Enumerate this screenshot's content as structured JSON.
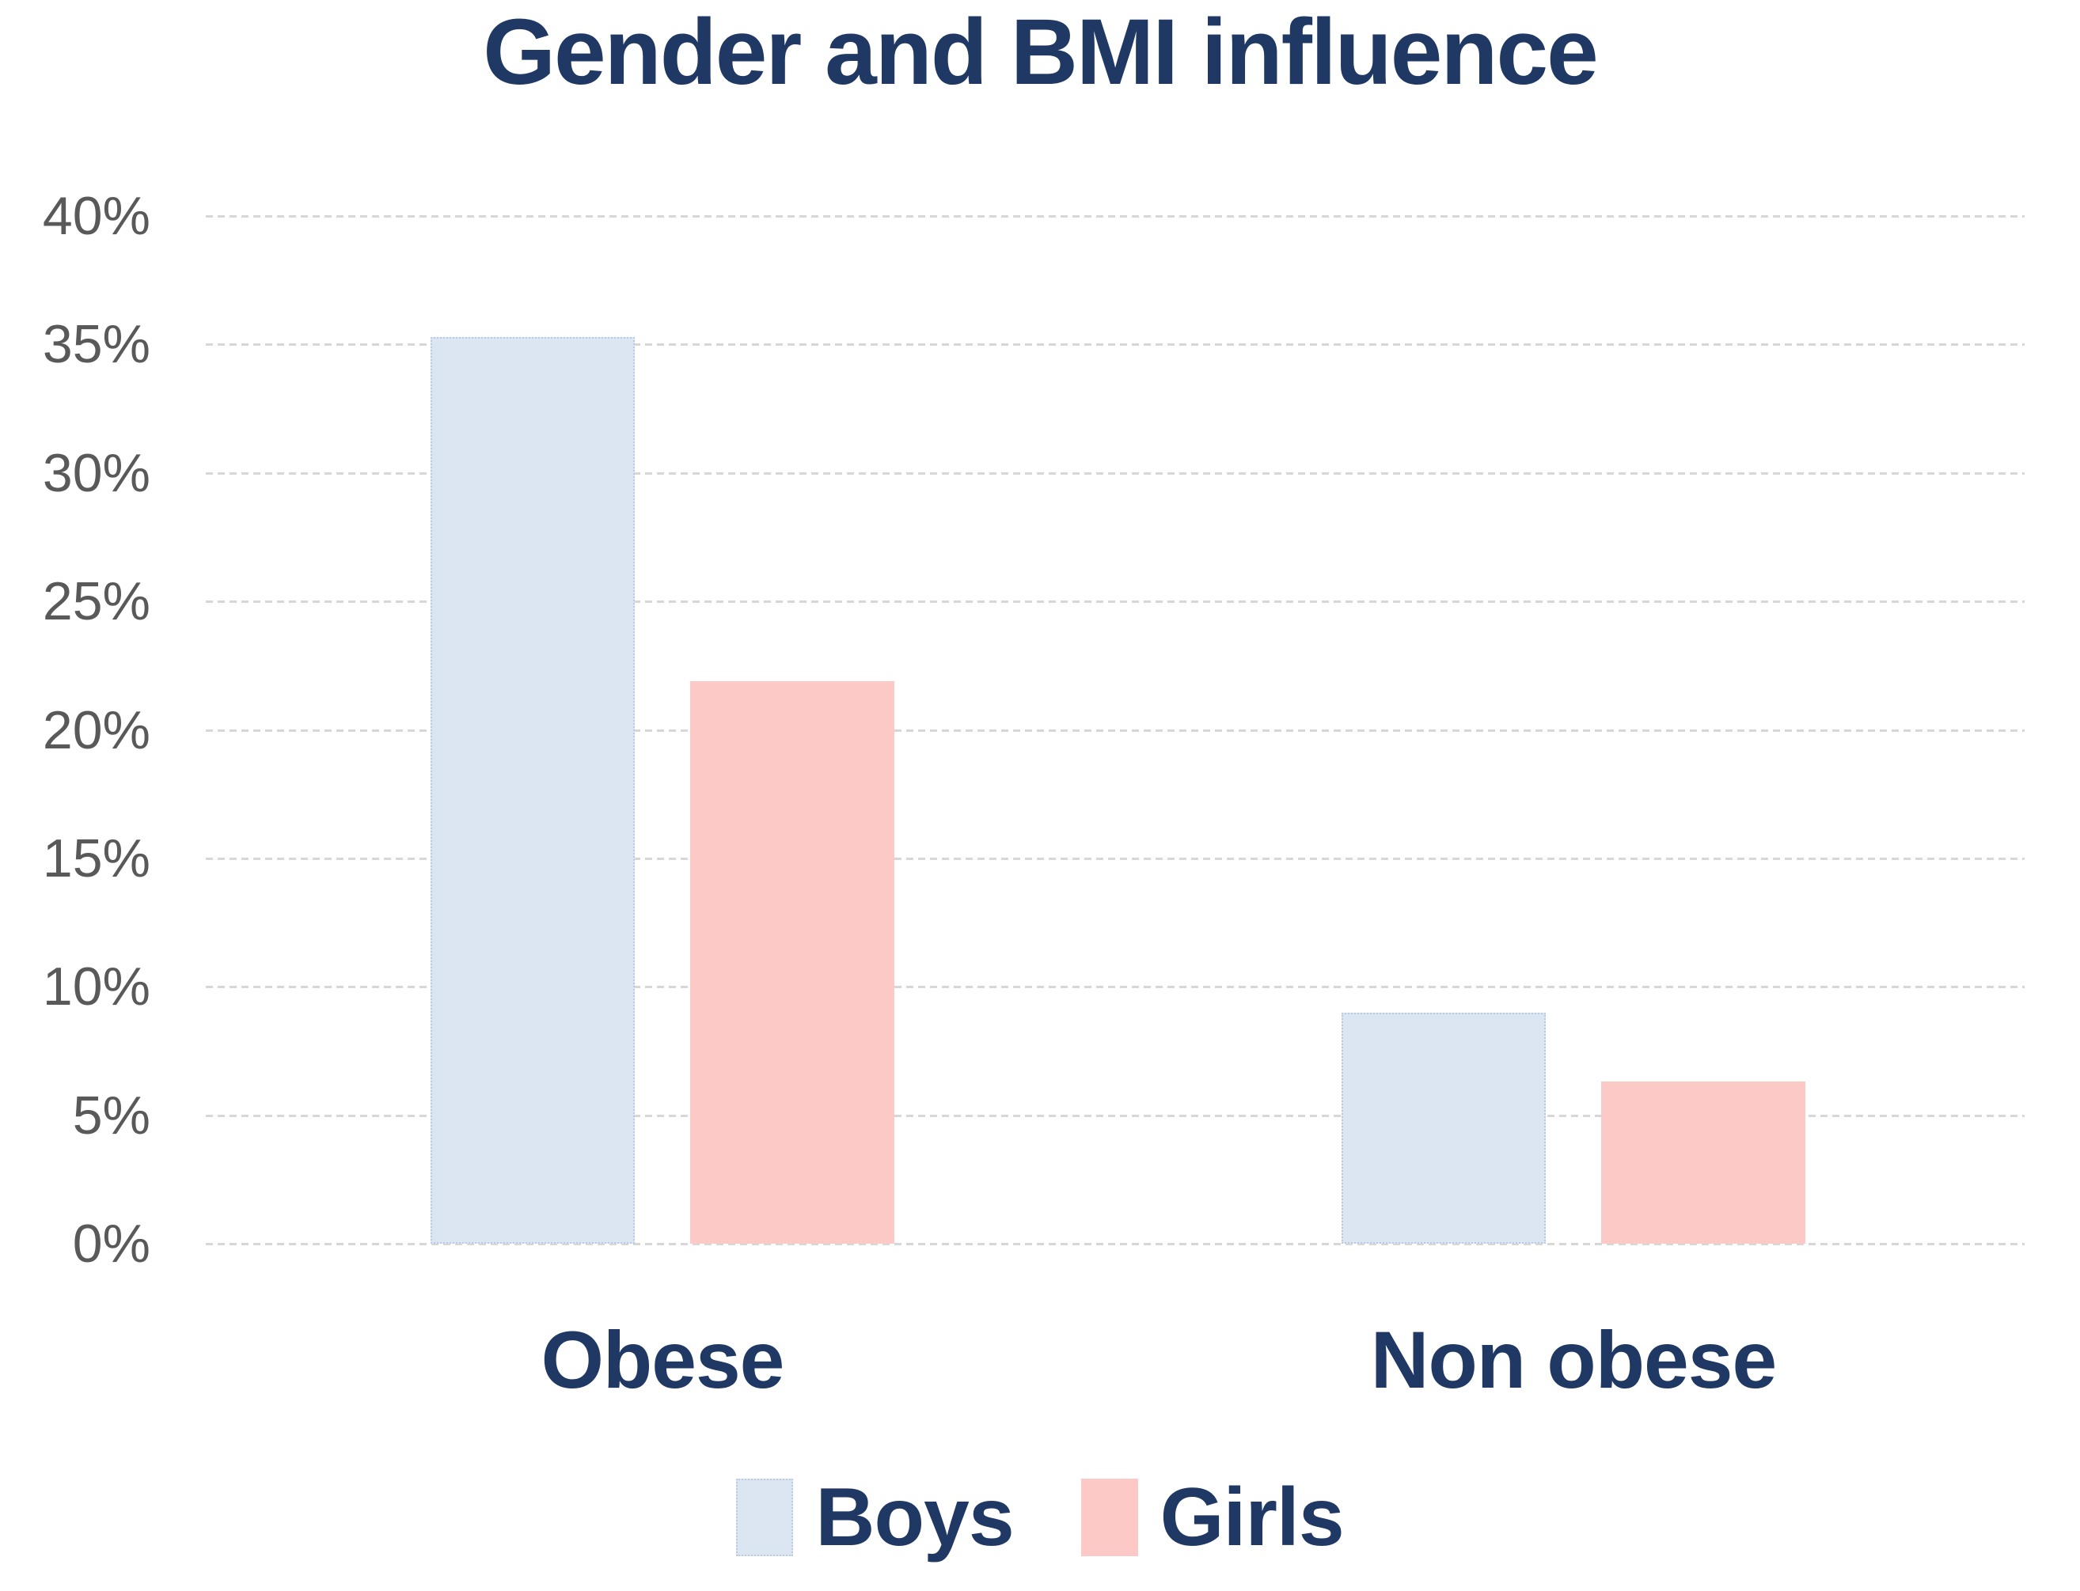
{
  "title": "Gender and BMI influence",
  "colors": {
    "title_text": "#1f3864",
    "category_text": "#1f3864",
    "legend_text": "#1f3864",
    "axis_tick_text": "#595959",
    "gridline": "#d7d7d7",
    "background": "#ffffff",
    "boys_bar": "#dce6f2",
    "girls_bar": "#fcc9c7"
  },
  "chart_data": {
    "type": "bar",
    "title": "Gender and BMI influence",
    "categories": [
      "Obese",
      "Non obese"
    ],
    "series": [
      {
        "name": "Boys",
        "color": "#dce6f2",
        "values": [
          35.3,
          9.0
        ]
      },
      {
        "name": "Girls",
        "color": "#fcc9c7",
        "values": [
          21.9,
          6.3
        ]
      }
    ],
    "xlabel": "",
    "ylabel": "",
    "ylim": [
      0,
      40
    ],
    "ytick_step": 5,
    "ytick_labels": [
      "0%",
      "5%",
      "10%",
      "15%",
      "20%",
      "25%",
      "30%",
      "35%",
      "40%"
    ],
    "grid": true,
    "gridline_style": "dotted",
    "legend_position": "bottom"
  }
}
